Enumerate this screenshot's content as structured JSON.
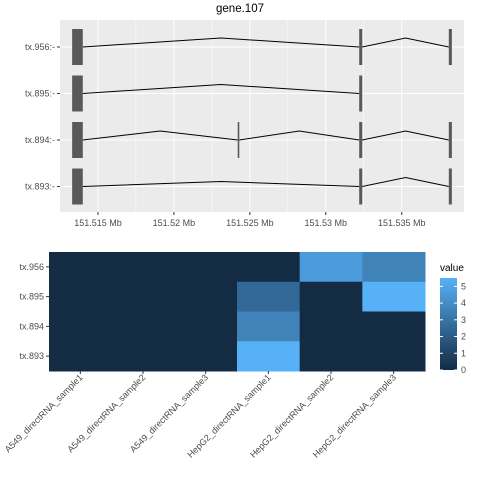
{
  "chart_data": [
    {
      "type": "gene-structure",
      "title": "gene.107",
      "xlabel": "",
      "ylabel": "",
      "x_unit_label": "Mb",
      "xlim": [
        151.5125,
        151.5391
      ],
      "x_ticks": [
        151.515,
        151.52,
        151.525,
        151.53,
        151.535
      ],
      "x_tick_labels": [
        "151.515 Mb",
        "151.52 Mb",
        "151.525 Mb",
        "151.53 Mb",
        "151.535 Mb"
      ],
      "grid": true,
      "transcripts": [
        {
          "label": "tx.956:-",
          "exons": [
            [
              151.5133,
              151.514
            ],
            [
              151.5322,
              151.5324
            ],
            [
              151.5381,
              151.5383
            ]
          ],
          "intron_peaks": [
            [
              151.514,
              151.5322,
              1.0
            ],
            [
              151.5324,
              151.5381,
              1.0
            ]
          ]
        },
        {
          "label": "tx.895:-",
          "exons": [
            [
              151.5133,
              151.514
            ],
            [
              151.5322,
              151.5324
            ]
          ],
          "intron_peaks": [
            [
              151.514,
              151.5322,
              1.0
            ]
          ]
        },
        {
          "label": "tx.894:-",
          "exons": [
            [
              151.5133,
              151.514
            ],
            [
              151.5242,
              151.5243
            ],
            [
              151.5322,
              151.5324
            ],
            [
              151.5381,
              151.5383
            ]
          ],
          "intron_peaks": [
            [
              151.514,
              151.5242,
              1.0
            ],
            [
              151.5243,
              151.5322,
              1.0
            ],
            [
              151.5324,
              151.5381,
              1.0
            ]
          ]
        },
        {
          "label": "tx.893:-",
          "exons": [
            [
              151.5133,
              151.514
            ],
            [
              151.5322,
              151.5324
            ],
            [
              151.5381,
              151.5383
            ]
          ],
          "intron_peaks": [
            [
              151.514,
              151.5322,
              0.55
            ],
            [
              151.5324,
              151.5381,
              1.0
            ]
          ]
        }
      ]
    },
    {
      "type": "heatmap",
      "xlabel": "",
      "ylabel": "",
      "rows": [
        "tx.956",
        "tx.895",
        "tx.894",
        "tx.893"
      ],
      "columns": [
        "A549_directRNA_sample1",
        "A549_directRNA_sample2",
        "A549_directRNA_sample3",
        "HepG2_directRNA_sample1",
        "HepG2_directRNA_sample2",
        "HepG2_directRNA_sample3"
      ],
      "values": [
        [
          0,
          0,
          0,
          0,
          4.6,
          3.6
        ],
        [
          0,
          0,
          0,
          2.5,
          0,
          5.5
        ],
        [
          0,
          0,
          0,
          3.6,
          0,
          0
        ],
        [
          0,
          0,
          0,
          5.5,
          0,
          0
        ]
      ],
      "legend": {
        "title": "value",
        "placement": "right",
        "ticks": [
          0,
          1,
          2,
          3,
          4,
          5
        ],
        "range": [
          0,
          5.5
        ]
      },
      "colors": {
        "low": "#132b43",
        "high": "#56b1f7"
      }
    }
  ],
  "colors": {
    "panel_background": "#ebebeb",
    "grid_line": "#ffffff",
    "exon_fill": "#595959",
    "intron_line": "#000000"
  }
}
